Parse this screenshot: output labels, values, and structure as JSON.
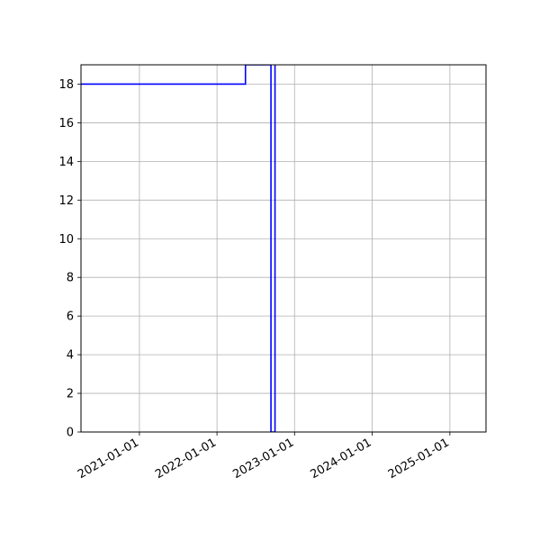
{
  "chart_data": {
    "type": "line",
    "title": "",
    "xlabel": "",
    "ylabel": "",
    "x_axis_type": "date",
    "xlim": [
      "2020-04-01",
      "2025-06-20"
    ],
    "ylim": [
      0,
      19
    ],
    "grid": true,
    "line_color": "#0000ff",
    "x_ticks": [
      "2021-01-01",
      "2022-01-01",
      "2023-01-01",
      "2024-01-01",
      "2025-01-01"
    ],
    "y_ticks": [
      0,
      2,
      4,
      6,
      8,
      10,
      12,
      14,
      16,
      18
    ],
    "series": [
      {
        "name": "",
        "step": true,
        "points": [
          {
            "x": "2020-04-01",
            "y": 18
          },
          {
            "x": "2022-05-15",
            "y": 18
          },
          {
            "x": "2022-05-15",
            "y": 19
          },
          {
            "x": "2022-09-12",
            "y": 19
          },
          {
            "x": "2022-09-12",
            "y": 0
          },
          {
            "x": "2022-10-01",
            "y": 0
          },
          {
            "x": "2022-10-01",
            "y": 19
          }
        ]
      }
    ]
  }
}
